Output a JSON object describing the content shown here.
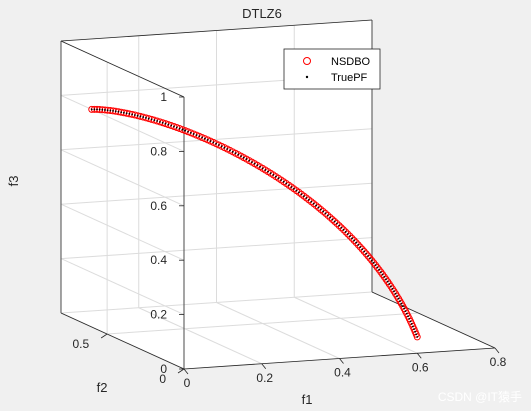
{
  "chart_data": {
    "type": "scatter",
    "projection": "3d",
    "title": "DTLZ6",
    "xlabel": "f1",
    "ylabel": "f2",
    "zlabel": "f3",
    "xlim": [
      0,
      0.8
    ],
    "ylim": [
      0,
      0.8
    ],
    "zlim": [
      0,
      1
    ],
    "xticks": [
      "0",
      "0.2",
      "0.4",
      "0.6",
      "0.8"
    ],
    "yticks": [
      "0",
      "0.5"
    ],
    "zticks": [
      "0",
      "0.2",
      "0.4",
      "0.6",
      "0.8",
      "1"
    ],
    "grid": true,
    "legend_position": "top-right",
    "colors": {
      "nsdbo": "#ff0000",
      "truepf": "#000000",
      "grid": "#dcdcdc",
      "axes": "#262626"
    },
    "series": [
      {
        "name": "NSDBO",
        "marker": "circle-open",
        "color": "#ff0000",
        "curve_start": [
          0.0,
          0.6,
          0.8
        ],
        "curve_end": [
          0.6,
          0.0,
          0.06
        ]
      },
      {
        "name": "TruePF",
        "marker": "point",
        "color": "#000000",
        "curve_start": [
          0.0,
          0.6,
          0.8
        ],
        "curve_end": [
          0.6,
          0.0,
          0.06
        ]
      }
    ]
  },
  "watermark": "CSDN @IT猿手"
}
